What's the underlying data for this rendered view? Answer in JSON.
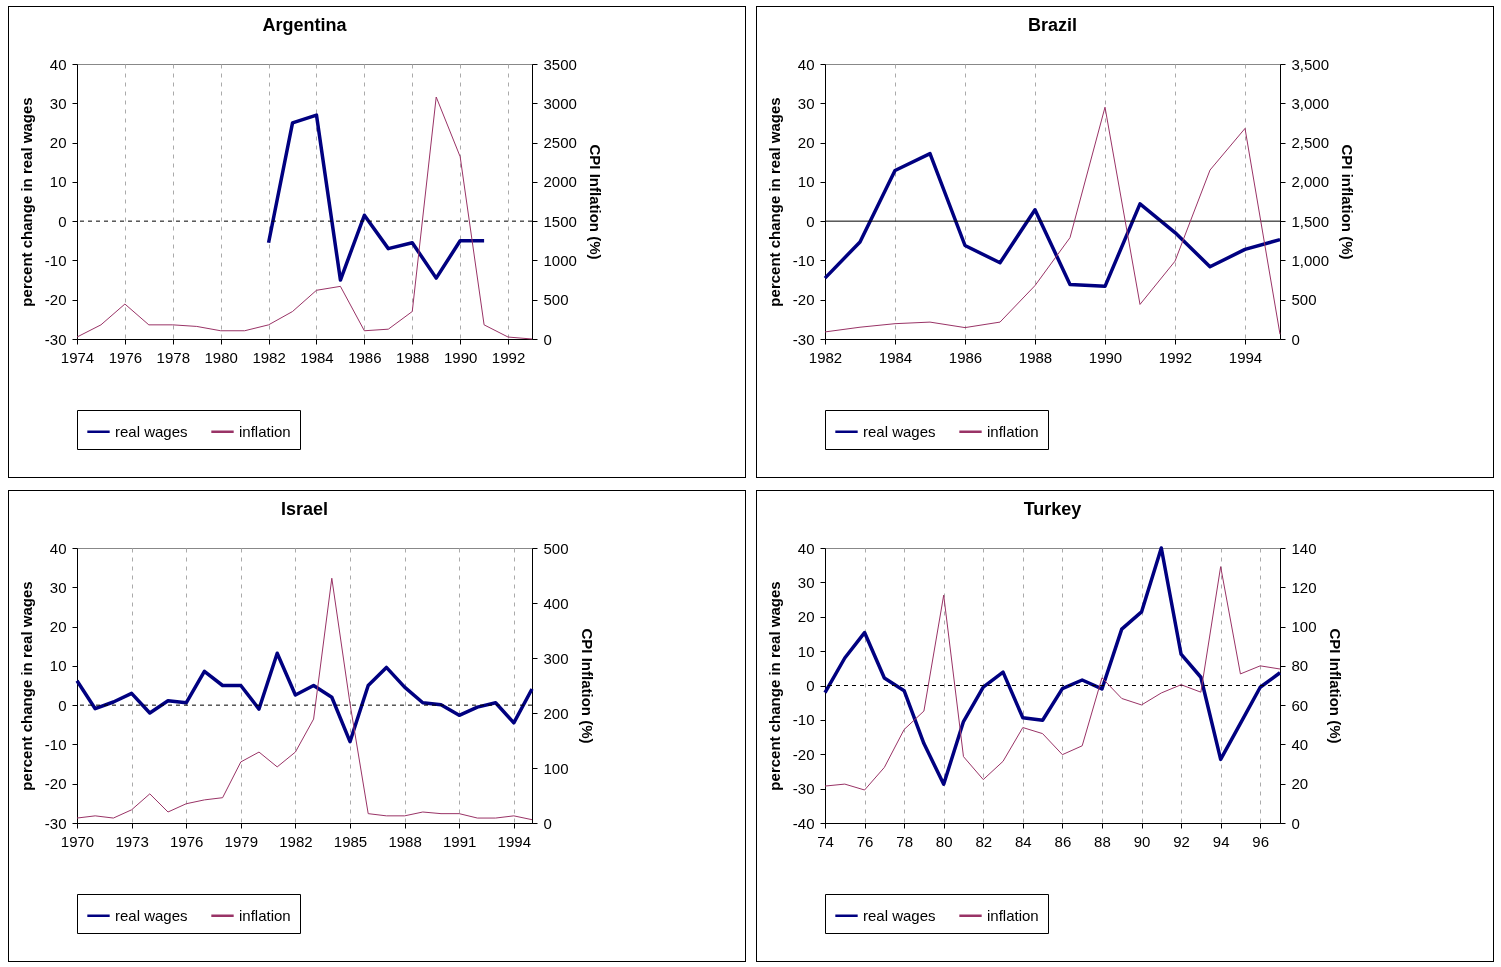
{
  "chart_data": [
    {
      "type": "line",
      "title": "Argentina",
      "ylabel": "percent change in real wages",
      "y2label": "CPI Inflation (%)",
      "x": [
        1974,
        1975,
        1976,
        1977,
        1978,
        1979,
        1980,
        1981,
        1982,
        1983,
        1984,
        1985,
        1986,
        1987,
        1988,
        1989,
        1990,
        1991,
        1992,
        1993
      ],
      "xlim": [
        1974,
        1993
      ],
      "xticks": [
        1974,
        1976,
        1978,
        1980,
        1982,
        1984,
        1986,
        1988,
        1990,
        1992
      ],
      "ylim": [
        -30,
        40
      ],
      "yticks": [
        -30,
        -20,
        -10,
        0,
        10,
        20,
        30,
        40
      ],
      "y2lim": [
        0,
        3500
      ],
      "y2ticks": [
        0,
        500,
        1000,
        1500,
        2000,
        2500,
        3000,
        3500
      ],
      "grid": "x",
      "legend": "bottom",
      "ref_lines": [
        {
          "axis": "y",
          "value": 0,
          "color": "#000000",
          "line_style": "dashed"
        }
      ],
      "series": [
        {
          "name": "real wages",
          "color": "#000080",
          "values": [
            null,
            null,
            null,
            null,
            null,
            null,
            null,
            null,
            -5.5,
            25,
            27,
            -15,
            1.5,
            -7,
            -5.5,
            -14.5,
            -5,
            -5,
            null,
            null
          ]
        },
        {
          "name": "inflation",
          "color": "#993366",
          "axis": "y2",
          "values": [
            25,
            180,
            445,
            180,
            180,
            160,
            105,
            105,
            180,
            350,
            620,
            670,
            105,
            125,
            350,
            3080,
            2320,
            180,
            25,
            0
          ]
        }
      ]
    },
    {
      "type": "line",
      "title": "Brazil",
      "ylabel": "percent change in real wages",
      "y2label": "CPI inflation (%)",
      "x": [
        1982,
        1983,
        1984,
        1985,
        1986,
        1987,
        1988,
        1989,
        1990,
        1991,
        1992,
        1993,
        1994,
        1995
      ],
      "xlim": [
        1982,
        1995
      ],
      "xticks": [
        1982,
        1984,
        1986,
        1988,
        1990,
        1992,
        1994
      ],
      "ylim": [
        -30,
        40
      ],
      "yticks": [
        -30,
        -20,
        -10,
        0,
        10,
        20,
        30,
        40
      ],
      "y2lim": [
        0,
        3500
      ],
      "y2ticks": [
        0,
        500,
        {
          "value": 1000,
          "label": "1,000"
        },
        {
          "value": 1500,
          "label": "1,500"
        },
        {
          "value": 2000,
          "label": "2,000"
        },
        {
          "value": 2500,
          "label": "2,500"
        },
        {
          "value": 3000,
          "label": "3,000"
        },
        {
          "value": 3500,
          "label": "3,500"
        }
      ],
      "grid": "x",
      "legend": "bottom",
      "ref_lines": [
        {
          "axis": "y",
          "value": 0,
          "color": "#000000",
          "line_style": "solid"
        }
      ],
      "series": [
        {
          "name": "real wages",
          "color": "#000080",
          "values": [
            -14.5,
            -5.3,
            12.9,
            17.2,
            -6.2,
            -10.6,
            2.9,
            -16.1,
            -16.6,
            4.4,
            -2.9,
            -11.6,
            -7.2,
            -4.7
          ]
        },
        {
          "name": "inflation",
          "color": "#993366",
          "axis": "y2",
          "values": [
            90,
            150,
            195,
            215,
            145,
            215,
            680,
            1290,
            2950,
            440,
            990,
            2150,
            2680,
            60
          ]
        }
      ]
    },
    {
      "type": "line",
      "title": "Israel",
      "ylabel": "percent change in real wages",
      "y2label": "CPI Inflation (%)",
      "x": [
        1970,
        1971,
        1972,
        1973,
        1974,
        1975,
        1976,
        1977,
        1978,
        1979,
        1980,
        1981,
        1982,
        1983,
        1984,
        1985,
        1986,
        1987,
        1988,
        1989,
        1990,
        1991,
        1992,
        1993,
        1994,
        1995
      ],
      "xlim": [
        1970,
        1995
      ],
      "xticks": [
        1970,
        1973,
        1976,
        1979,
        1982,
        1985,
        1988,
        1991,
        1994
      ],
      "ylim": [
        -30,
        40
      ],
      "yticks": [
        -30,
        -20,
        -10,
        0,
        10,
        20,
        30,
        40
      ],
      "y2lim": [
        0,
        500
      ],
      "y2ticks": [
        0,
        100,
        200,
        300,
        400,
        500
      ],
      "grid": "x",
      "legend": "bottom",
      "ref_lines": [
        {
          "axis": "y",
          "value": 0,
          "color": "#000000",
          "line_style": "dashed"
        }
      ],
      "series": [
        {
          "name": "real wages",
          "color": "#000080",
          "values": [
            6.2,
            -0.9,
            0.8,
            3,
            -2,
            1.1,
            0.6,
            8.6,
            5,
            5,
            -1,
            13.2,
            2.6,
            5,
            2,
            -9.3,
            5,
            9.6,
            4.6,
            0.6,
            0.1,
            -2.6,
            -0.5,
            0.6,
            -4.5,
            4.1
          ]
        },
        {
          "name": "inflation",
          "color": "#993366",
          "axis": "y2",
          "values": [
            9,
            13,
            9,
            24,
            53,
            20,
            35,
            42,
            46,
            111,
            129,
            102,
            129,
            189,
            445,
            217,
            17,
            13,
            13,
            20,
            17,
            17,
            9,
            9,
            13,
            6
          ]
        }
      ]
    },
    {
      "type": "line",
      "title": "Turkey",
      "ylabel": "percent change in real wages",
      "y2label": "CPI Inflation (%)",
      "x": [
        74,
        75,
        76,
        77,
        78,
        79,
        80,
        81,
        82,
        83,
        84,
        85,
        86,
        87,
        88,
        89,
        90,
        91,
        92,
        93,
        94,
        95,
        96,
        97
      ],
      "xlim": [
        74,
        97
      ],
      "xticks": [
        74,
        76,
        78,
        80,
        82,
        84,
        86,
        88,
        90,
        92,
        94,
        96
      ],
      "ylim": [
        -40,
        40
      ],
      "yticks": [
        -40,
        -30,
        -20,
        -10,
        0,
        10,
        20,
        30,
        40
      ],
      "y2lim": [
        0,
        140
      ],
      "y2ticks": [
        0,
        20,
        40,
        60,
        80,
        100,
        120,
        140
      ],
      "grid": "x",
      "legend": "bottom",
      "ref_lines": [
        {
          "axis": "y",
          "value": 0,
          "color": "#000000",
          "line_style": "dashed"
        }
      ],
      "series": [
        {
          "name": "real wages",
          "color": "#000080",
          "values": [
            -2.1,
            8,
            15.4,
            2.2,
            -1.5,
            -16.9,
            -28.7,
            -10.5,
            -0.5,
            3.9,
            -9.4,
            -10.1,
            -0.9,
            1.6,
            -1,
            16.4,
            21.4,
            40,
            9.1,
            2.4,
            -21.5,
            -11,
            -0.5,
            3.7
          ]
        },
        {
          "name": "inflation",
          "color": "#993366",
          "axis": "y2",
          "values": [
            18.8,
            19.8,
            16.8,
            28.3,
            47.6,
            57,
            116,
            33.8,
            22.1,
            31.4,
            48.6,
            45.5,
            34.8,
            39.3,
            73.9,
            63.4,
            60.1,
            66.2,
            70.4,
            66.6,
            130.5,
            75.9,
            80,
            78.4
          ]
        }
      ]
    }
  ]
}
